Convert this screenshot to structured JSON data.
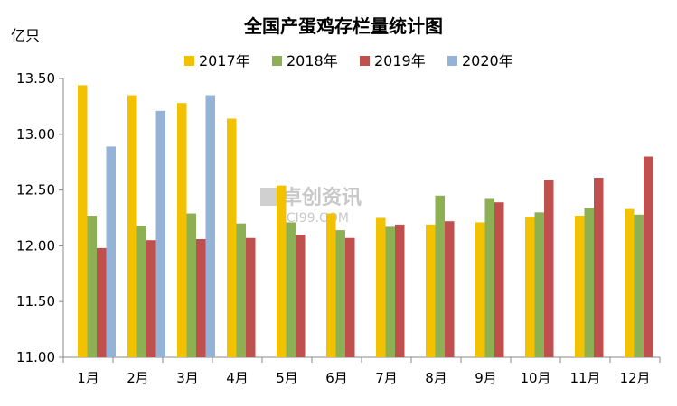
{
  "chart_data": {
    "type": "bar",
    "title": "全国产蛋鸡存栏量统计图",
    "ylabel": "亿只",
    "xlabel": "",
    "ylim": [
      11.0,
      13.5
    ],
    "yticks": [
      "11.00",
      "11.50",
      "12.00",
      "12.50",
      "13.00",
      "13.50"
    ],
    "ytick_values": [
      11.0,
      11.5,
      12.0,
      12.5,
      13.0,
      13.5
    ],
    "legend_position": "top-center",
    "grid": false,
    "categories": [
      "1月",
      "2月",
      "3月",
      "4月",
      "5月",
      "6月",
      "7月",
      "8月",
      "9月",
      "10月",
      "11月",
      "12月"
    ],
    "series": [
      {
        "name": "2017年",
        "color": "#F2C200",
        "values": [
          13.44,
          13.35,
          13.28,
          13.14,
          12.54,
          12.29,
          12.25,
          12.19,
          12.21,
          12.26,
          12.27,
          12.33
        ]
      },
      {
        "name": "2018年",
        "color": "#8DB055",
        "values": [
          12.27,
          12.18,
          12.29,
          12.2,
          12.21,
          12.14,
          12.17,
          12.45,
          12.42,
          12.3,
          12.34,
          12.28
        ]
      },
      {
        "name": "2019年",
        "color": "#C0504D",
        "values": [
          11.98,
          12.05,
          12.06,
          12.07,
          12.1,
          12.07,
          12.19,
          12.22,
          12.39,
          12.59,
          12.61,
          12.8
        ]
      },
      {
        "name": "2020年",
        "color": "#95B3D7",
        "values": [
          12.89,
          13.21,
          13.35,
          null,
          null,
          null,
          null,
          null,
          null,
          null,
          null,
          null
        ]
      }
    ],
    "watermark": {
      "text": "卓创资讯",
      "subtext": "SCI99.COM"
    }
  }
}
